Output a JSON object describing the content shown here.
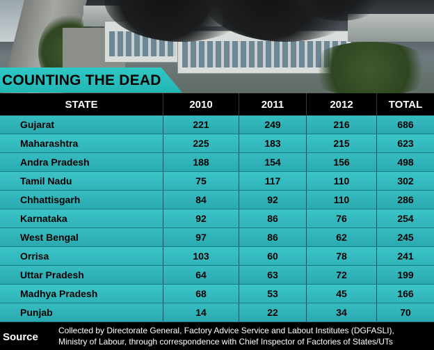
{
  "title": "COUNTING THE DEAD",
  "source": {
    "label": "Source",
    "line1": "Collected by Directorate General, Factory Advice Service and Labout Institutes (DGFASLI),",
    "line2": "Ministry of Labour, through correspondence with  Chief Inspector of Factories of States/UTs"
  },
  "chart_data": {
    "type": "table",
    "columns": [
      "STATE",
      "2010",
      "2011",
      "2012",
      "TOTAL"
    ],
    "rows": [
      [
        "Gujarat",
        "221",
        "249",
        "216",
        "686"
      ],
      [
        "Maharashtra",
        "225",
        "183",
        "215",
        "623"
      ],
      [
        "Andra Pradesh",
        "188",
        "154",
        "156",
        "498"
      ],
      [
        "Tamil Nadu",
        "75",
        "117",
        "110",
        "302"
      ],
      [
        "Chhattisgarh",
        "84",
        "92",
        "110",
        "286"
      ],
      [
        "Karnataka",
        "92",
        "86",
        "76",
        "254"
      ],
      [
        "West Bengal",
        "97",
        "86",
        "62",
        "245"
      ],
      [
        "Orrisa",
        "103",
        "60",
        "78",
        "241"
      ],
      [
        "Uttar Pradesh",
        "64",
        "63",
        "72",
        "199"
      ],
      [
        "Madhya Pradesh",
        "68",
        "53",
        "45",
        "166"
      ],
      [
        "Punjab",
        "14",
        "22",
        "34",
        "70"
      ]
    ]
  },
  "colors": {
    "header_bg": "#000000",
    "row_bg": "#33b9bd",
    "banner": "#2cc0bf"
  }
}
